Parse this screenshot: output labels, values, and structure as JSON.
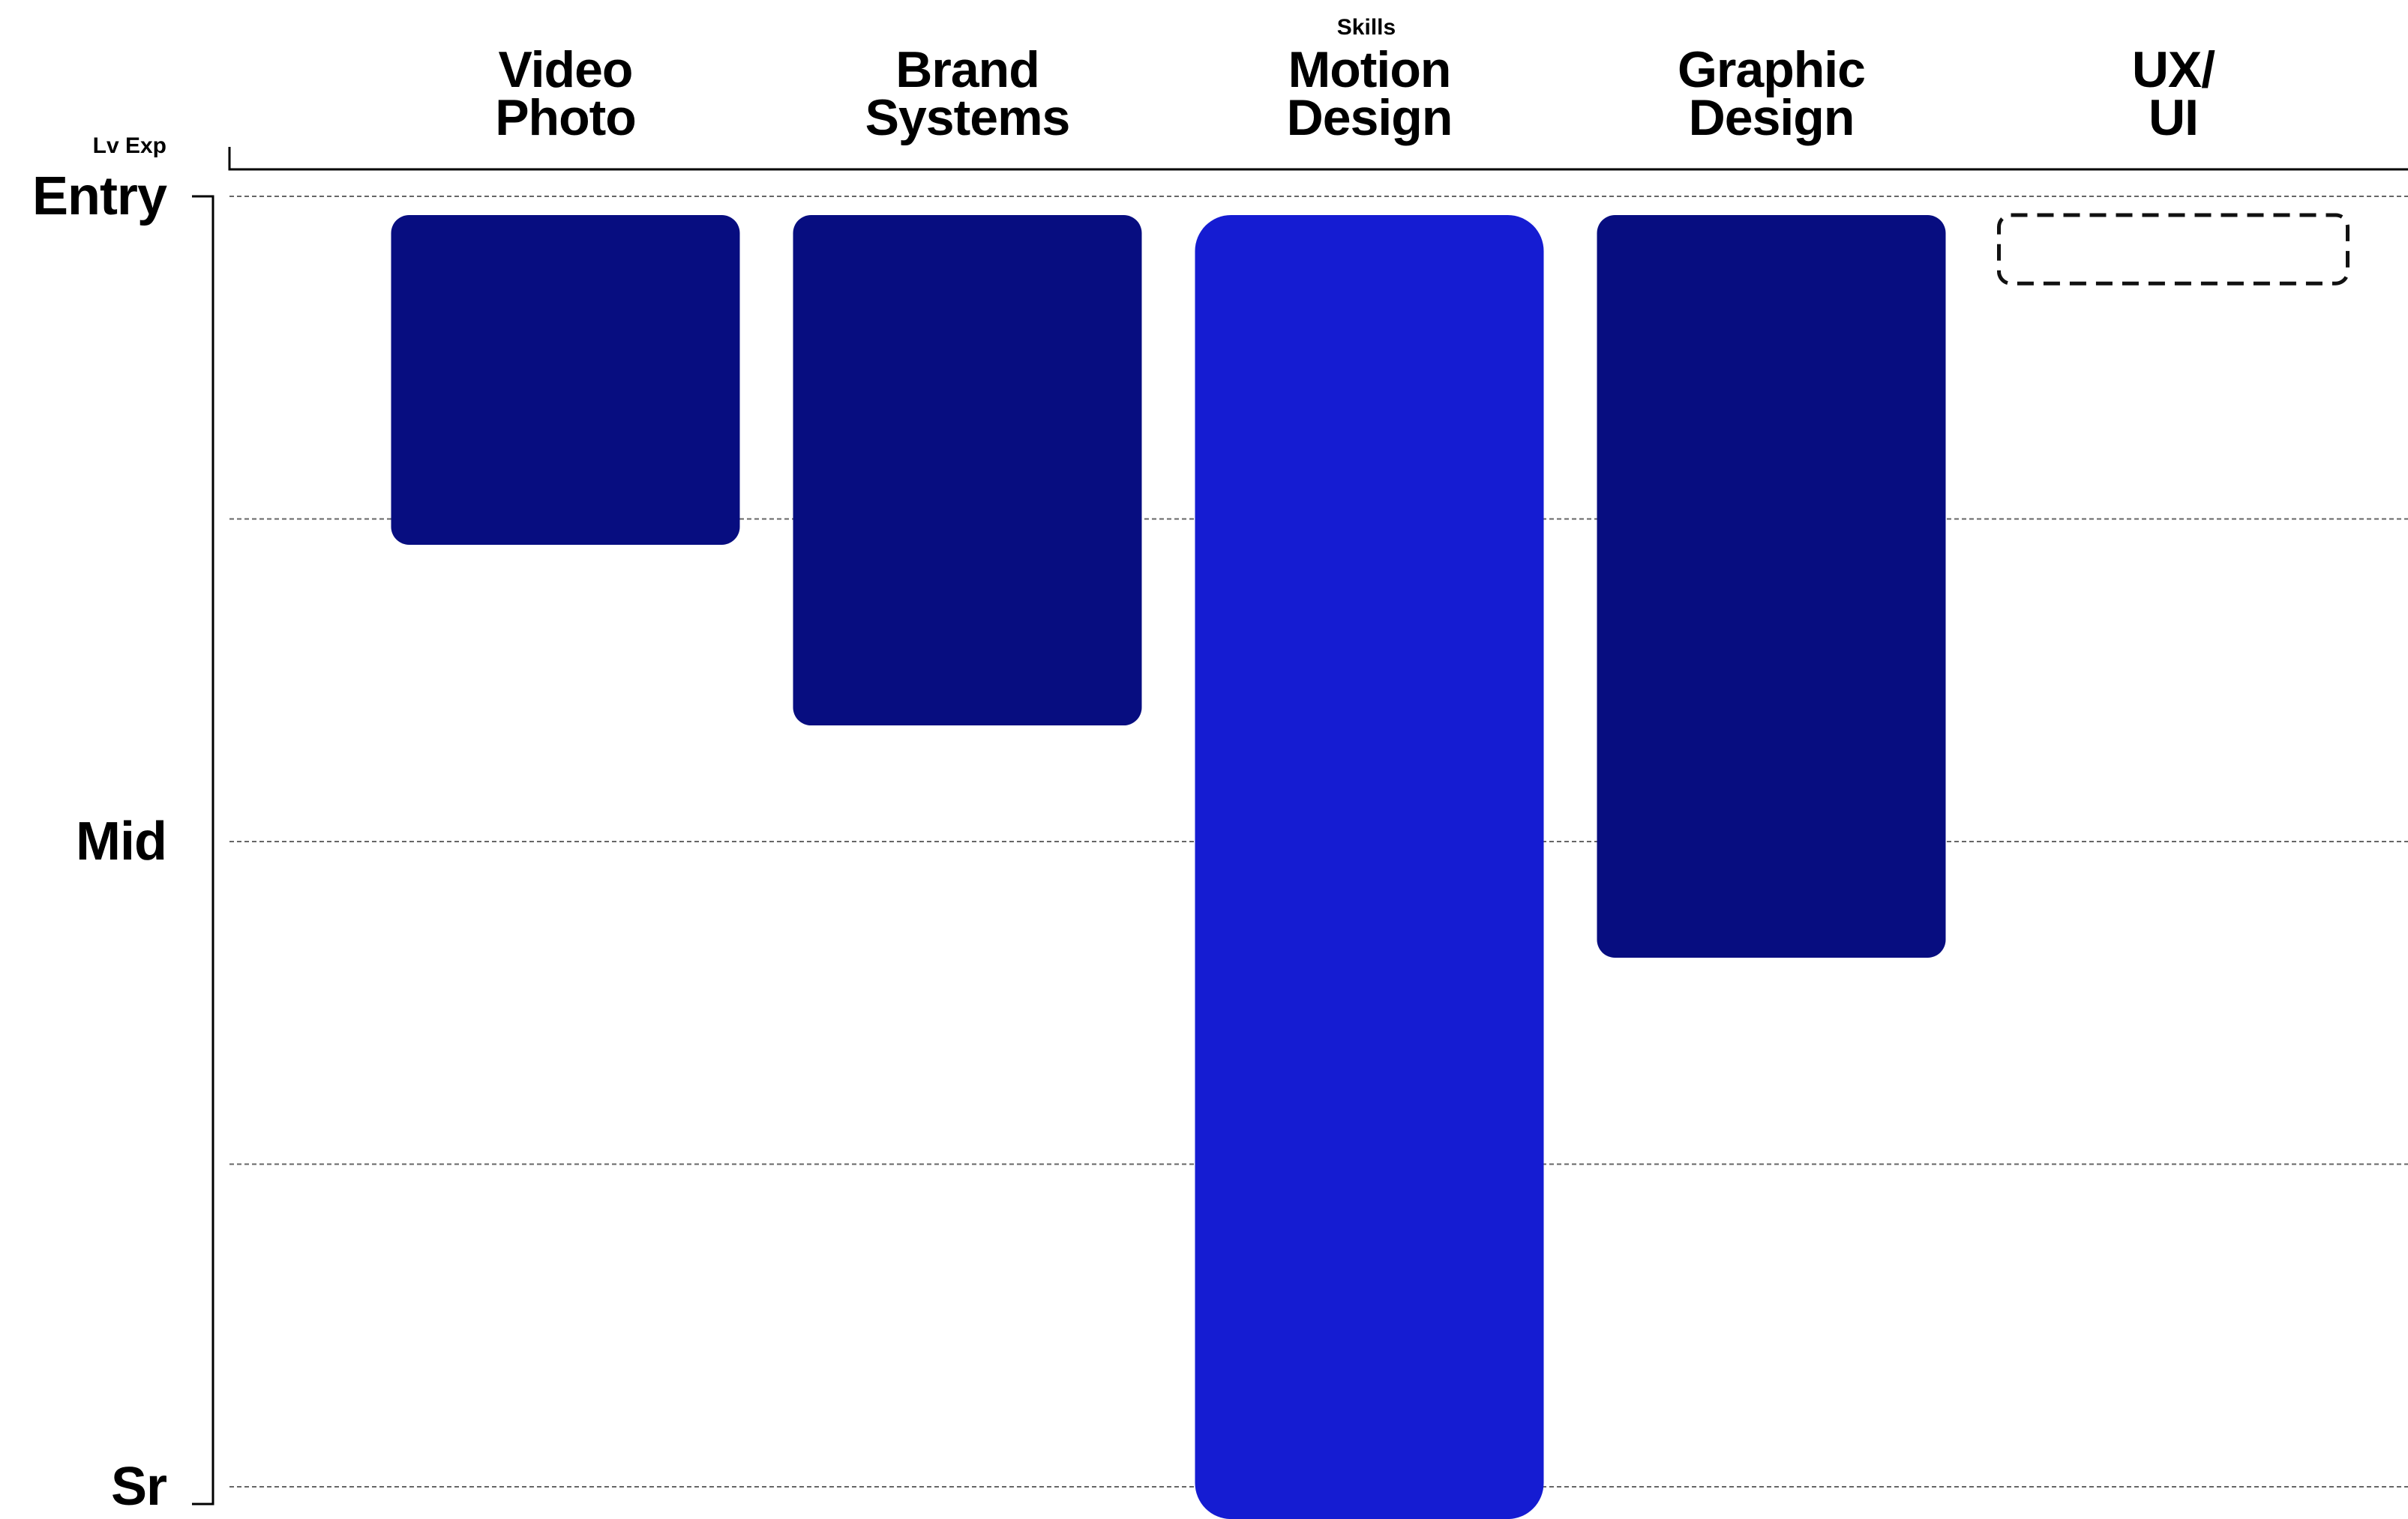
{
  "chart_data": {
    "type": "bar",
    "title": "",
    "x_axis_title": "Skills",
    "y_axis_title": "Lv Exp",
    "y_levels": [
      "Entry",
      "Mid",
      "Sr"
    ],
    "y_range": [
      0,
      4
    ],
    "y_tick_values": [
      0,
      2,
      4
    ],
    "gridlines": [
      0,
      1,
      2,
      3,
      4
    ],
    "bar_origin": "top",
    "categories": [
      {
        "lines": [
          "Video",
          "Photo"
        ],
        "value": 1.08,
        "style": "filled",
        "color": "#070D80"
      },
      {
        "lines": [
          "Brand",
          "Systems"
        ],
        "value": 1.64,
        "style": "filled",
        "color": "#070D80"
      },
      {
        "lines": [
          "Motion",
          "Design"
        ],
        "value": 4.1,
        "style": "highlight",
        "color": "#151CD2"
      },
      {
        "lines": [
          "Graphic",
          "Design"
        ],
        "value": 2.36,
        "style": "filled",
        "color": "#070D80"
      },
      {
        "lines": [
          "UX/",
          "UI"
        ],
        "value": 0.27,
        "style": "placeholder",
        "color": "#111111"
      }
    ]
  }
}
